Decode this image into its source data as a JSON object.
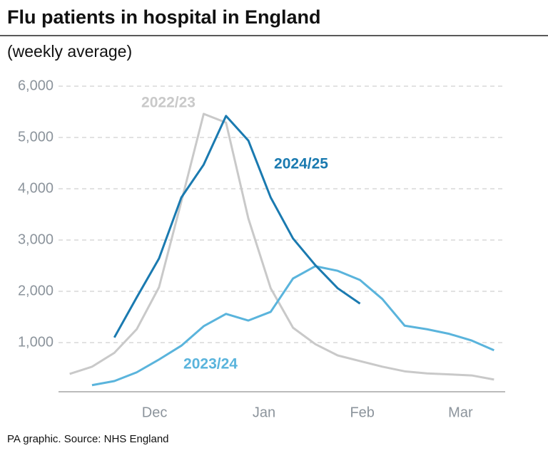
{
  "chart_data": {
    "type": "line",
    "title": "Flu patients in hospital in England",
    "subtitle": "(weekly average)",
    "source": "PA graphic. Source: NHS England",
    "xlim": [
      -0.5,
      19.5
    ],
    "xticks": [
      {
        "value": 3.8,
        "label": "Dec"
      },
      {
        "value": 8.7,
        "label": "Jan"
      },
      {
        "value": 13.1,
        "label": "Feb"
      },
      {
        "value": 17.5,
        "label": "Mar"
      }
    ],
    "ylim": [
      0,
      6000
    ],
    "yticks": [
      {
        "value": 1000,
        "label": "1,000"
      },
      {
        "value": 2000,
        "label": "2,000"
      },
      {
        "value": 3000,
        "label": "3,000"
      },
      {
        "value": 4000,
        "label": "4,000"
      },
      {
        "value": 5000,
        "label": "5,000"
      },
      {
        "value": 6000,
        "label": "6,000"
      }
    ],
    "grid": true,
    "series": [
      {
        "name": "2022/23",
        "color": "#c9c9c9",
        "x": [
          0,
          1,
          2,
          3,
          4,
          5,
          6,
          7,
          8,
          9,
          10,
          11,
          12,
          13,
          14,
          15,
          16,
          17,
          18,
          19
        ],
        "values": [
          390,
          530,
          800,
          1260,
          2080,
          3750,
          5460,
          5290,
          3420,
          2060,
          1290,
          970,
          750,
          640,
          530,
          440,
          400,
          380,
          360,
          280
        ]
      },
      {
        "name": "2023/24",
        "color": "#5ab4dc",
        "x": [
          1,
          2,
          3,
          4,
          5,
          6,
          7,
          8,
          9,
          10,
          11,
          12,
          13,
          14,
          15,
          16,
          17,
          18,
          19
        ],
        "values": [
          170,
          250,
          420,
          670,
          940,
          1320,
          1560,
          1430,
          1600,
          2250,
          2490,
          2400,
          2220,
          1850,
          1330,
          1260,
          1170,
          1040,
          850
        ]
      },
      {
        "name": "2024/25",
        "color": "#1a7ab0",
        "x": [
          2,
          3,
          4,
          5,
          6,
          7,
          8,
          9,
          10,
          11,
          12,
          13
        ],
        "values": [
          1100,
          1880,
          2640,
          3830,
          4470,
          5420,
          4940,
          3830,
          3030,
          2510,
          2060,
          1760
        ]
      }
    ]
  }
}
